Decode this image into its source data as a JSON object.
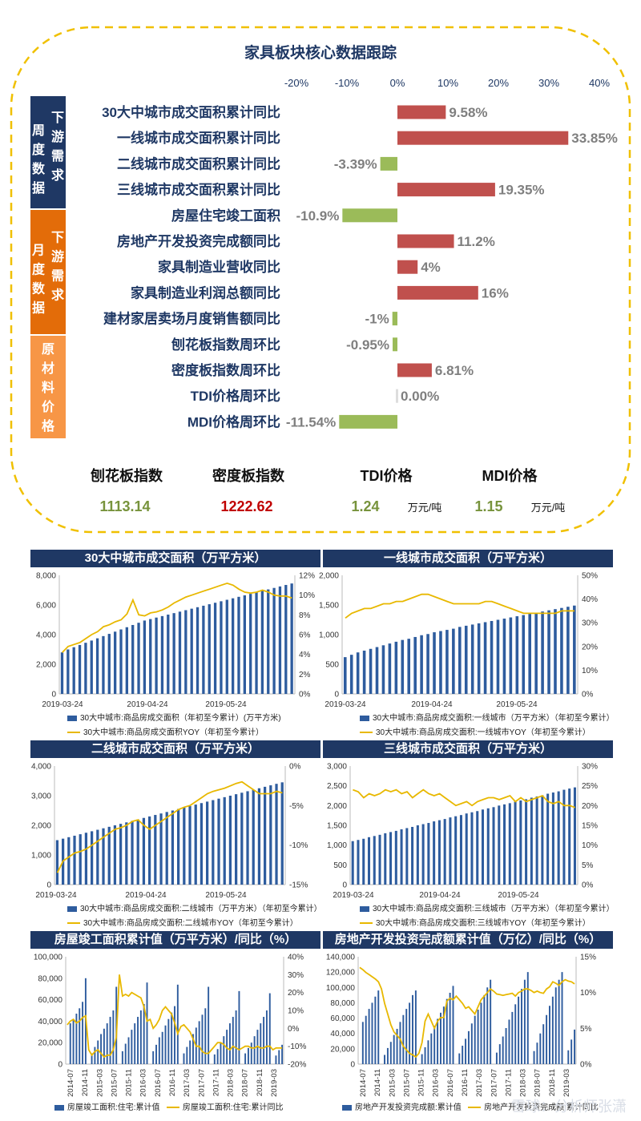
{
  "header": {
    "title": "家具板块核心数据跟踪"
  },
  "sections": [
    {
      "label": "周度数据",
      "sub": "下游需求",
      "color": "#1f3864"
    },
    {
      "label": "月度数据",
      "sub": "下游需求",
      "color": "#e36c09"
    },
    {
      "label": "原材料价格",
      "sub": "",
      "color": "#f79646"
    }
  ],
  "summary": {
    "items": [
      {
        "name": "刨花板指数",
        "value": "1113.14",
        "unit": "",
        "color": "#77933c"
      },
      {
        "name": "密度板指数",
        "value": "1222.62",
        "unit": "",
        "color": "#c00000"
      },
      {
        "name": "TDI价格",
        "value": "1.24",
        "unit": "万元/吨",
        "color": "#77933c"
      },
      {
        "name": "MDI价格",
        "value": "1.15",
        "unit": "万元/吨",
        "color": "#77933c"
      }
    ]
  },
  "chart_data": [
    {
      "type": "bar",
      "title": "家具板块核心数据跟踪",
      "orientation": "horizontal",
      "xlim": [
        -20,
        40
      ],
      "tick_labels": [
        "-20%",
        "-10%",
        "0%",
        "10%",
        "20%",
        "30%",
        "40%"
      ],
      "colors": {
        "positive": "#c0504d",
        "negative": "#9bbb59"
      },
      "categories": [
        "30大中城市成交面积累计同比",
        "一线城市成交面积累计同比",
        "二线城市成交面积累计同比",
        "三线城市成交面积累计同比",
        "房屋住宅竣工面积",
        "房地产开发投资完成额同比",
        "家具制造业营收同比",
        "家具制造业利润总额同比",
        "建材家居卖场月度销售额同比",
        "刨花板指数周环比",
        "密度板指数周环比",
        "TDI价格周环比",
        "MDI价格周环比"
      ],
      "values": [
        9.58,
        33.85,
        -3.39,
        19.35,
        -10.9,
        11.2,
        4,
        16,
        -1,
        -0.95,
        6.81,
        0.0,
        -11.54
      ],
      "labels": [
        "9.58%",
        "33.85%",
        "-3.39%",
        "19.35%",
        "-10.9%",
        "11.2%",
        "4%",
        "16%",
        "-1%",
        "-0.95%",
        "6.81%",
        "0.00%",
        "-11.54%"
      ]
    },
    {
      "type": "bar",
      "title": "30大中城市成交面积（万平方米）",
      "ylim": [
        0,
        8000
      ],
      "y2lim": [
        0,
        12
      ],
      "y_ticks": [
        "0",
        "2,000",
        "4,000",
        "6,000",
        "8,000"
      ],
      "y2_ticks": [
        "0%",
        "2%",
        "4%",
        "6%",
        "8%",
        "10%",
        "12%"
      ],
      "x_ticks": [
        "2019-03-24",
        "2019-04-24",
        "2019-05-24"
      ],
      "series": [
        {
          "name": "30大中城市:商品房成交面积（年初至今累计）(万平方米)",
          "type": "bar",
          "values": [
            2800,
            3000,
            3150,
            3300,
            3450,
            3600,
            3750,
            3900,
            4050,
            4200,
            4350,
            4500,
            4650,
            4800,
            4950,
            5050,
            5150,
            5250,
            5350,
            5450,
            5550,
            5650,
            5750,
            5850,
            5950,
            6050,
            6150,
            6250,
            6350,
            6450,
            6550,
            6650,
            6750,
            6850,
            6950,
            7050,
            7150,
            7250,
            7350,
            7450
          ]
        },
        {
          "name": "30大中城市:商品房成交面积YOY（年初至今累计）",
          "type": "line",
          "axis": "y2",
          "values": [
            4.2,
            4.8,
            5.0,
            5.2,
            5.6,
            6.0,
            6.3,
            6.8,
            7.0,
            7.3,
            7.5,
            8.1,
            9.5,
            8.0,
            7.9,
            8.2,
            8.3,
            8.5,
            8.8,
            9.2,
            9.5,
            9.8,
            10.0,
            10.2,
            10.4,
            10.6,
            10.8,
            11.0,
            11.2,
            11.0,
            10.6,
            10.3,
            10.2,
            10.3,
            10.5,
            10.3,
            10.0,
            9.9,
            9.9,
            9.7
          ]
        }
      ]
    },
    {
      "type": "bar",
      "title": "一线城市成交面积（万平方米）",
      "ylim": [
        0,
        2000
      ],
      "y2lim": [
        0,
        50
      ],
      "y_ticks": [
        "0",
        "500",
        "1,000",
        "1,500",
        "2,000"
      ],
      "y2_ticks": [
        "0%",
        "10%",
        "20%",
        "30%",
        "40%",
        "50%"
      ],
      "x_ticks": [
        "2019-03-24",
        "2019-04-24",
        "2019-05-24"
      ],
      "series": [
        {
          "name": "30大中城市:商品房成交面积:一线城市（万平方米）（年初至今累计）",
          "type": "bar",
          "values": [
            620,
            660,
            700,
            730,
            760,
            790,
            820,
            850,
            880,
            910,
            930,
            960,
            990,
            1010,
            1040,
            1060,
            1080,
            1100,
            1130,
            1150,
            1170,
            1190,
            1210,
            1230,
            1250,
            1270,
            1290,
            1310,
            1330,
            1350,
            1370,
            1390,
            1410,
            1430,
            1450,
            1470,
            1490
          ]
        },
        {
          "name": "30大中城市:商品房成交面积:一线城市YOY（年初至今累计）",
          "type": "line",
          "axis": "y2",
          "values": [
            32,
            34,
            35,
            36,
            36,
            37,
            38,
            38,
            39,
            39,
            40,
            41,
            42,
            42,
            41,
            40,
            39,
            38,
            38,
            38,
            38,
            38,
            39,
            39,
            38,
            37,
            36,
            35,
            34,
            34,
            34,
            34,
            34,
            34,
            35,
            35,
            35
          ]
        }
      ]
    },
    {
      "type": "bar",
      "title": "二线城市成交面积（万平方米）",
      "ylim": [
        0,
        4000
      ],
      "y2lim": [
        -15,
        0
      ],
      "y_ticks": [
        "0",
        "1,000",
        "2,000",
        "3,000",
        "4,000"
      ],
      "y2_ticks": [
        "-15%",
        "-10%",
        "-5%",
        "0%"
      ],
      "x_ticks": [
        "2019-03-24",
        "2019-04-24",
        "2019-05-24"
      ],
      "series": [
        {
          "name": "30大中城市:商品房成交面积:二线城市（万平方米）（年初至今累计）",
          "type": "bar",
          "values": [
            1500,
            1550,
            1600,
            1650,
            1700,
            1750,
            1800,
            1850,
            1900,
            1950,
            2000,
            2050,
            2100,
            2150,
            2200,
            2250,
            2300,
            2350,
            2400,
            2450,
            2500,
            2550,
            2600,
            2650,
            2700,
            2750,
            2800,
            2850,
            2900,
            2950,
            3000,
            3050,
            3100,
            3150,
            3200,
            3250,
            3300,
            3350,
            3400,
            3450
          ]
        },
        {
          "name": "30大中城市:商品房成交面积:二线城市YOY（年初至今累计）",
          "type": "line",
          "axis": "y2",
          "values": [
            -13.5,
            -12.0,
            -11.5,
            -11.0,
            -10.8,
            -10.5,
            -10.0,
            -9.5,
            -9.0,
            -8.5,
            -8.0,
            -7.8,
            -7.5,
            -7.0,
            -6.8,
            -7.5,
            -8.0,
            -7.5,
            -7.0,
            -6.5,
            -6.0,
            -5.5,
            -5.2,
            -5.0,
            -4.5,
            -4.0,
            -3.5,
            -3.2,
            -3.0,
            -2.8,
            -2.5,
            -2.2,
            -2.0,
            -2.5,
            -3.0,
            -3.5,
            -3.5,
            -3.5,
            -3.2,
            -3.4
          ]
        }
      ]
    },
    {
      "type": "bar",
      "title": "三线城市成交面积（万平方米）",
      "ylim": [
        0,
        3000
      ],
      "y2lim": [
        0,
        30
      ],
      "y_ticks": [
        "0",
        "500",
        "1,000",
        "1,500",
        "2,000",
        "2,500",
        "3,000"
      ],
      "y2_ticks": [
        "0%",
        "5%",
        "10%",
        "15%",
        "20%",
        "25%",
        "30%"
      ],
      "x_ticks": [
        "2019-03-24",
        "2019-04-24",
        "2019-05-24"
      ],
      "series": [
        {
          "name": "30大中城市:商品房成交面积:三线城市（万平方米）（年初至今累计）",
          "type": "bar",
          "values": [
            1100,
            1130,
            1160,
            1200,
            1230,
            1260,
            1300,
            1330,
            1360,
            1400,
            1430,
            1460,
            1500,
            1530,
            1560,
            1600,
            1630,
            1660,
            1700,
            1730,
            1760,
            1800,
            1830,
            1860,
            1900,
            1930,
            1960,
            2000,
            2030,
            2060,
            2100,
            2130,
            2160,
            2200,
            2230,
            2260,
            2300,
            2330,
            2360,
            2400,
            2430,
            2460
          ]
        },
        {
          "name": "30大中城市:商品房成交面积:三线城市YOY（年初至今累计）",
          "type": "line",
          "axis": "y2",
          "values": [
            24,
            23.5,
            22,
            23,
            22.5,
            23,
            24,
            23.5,
            24,
            23,
            23.5,
            22,
            23,
            24,
            23,
            22.5,
            23,
            22,
            21,
            20,
            20.5,
            21,
            20,
            21,
            21.5,
            22,
            22,
            21.5,
            22,
            22.5,
            21,
            22,
            21,
            21.5,
            22,
            22.5,
            21,
            20.5,
            21,
            20,
            20,
            19.5
          ]
        }
      ]
    },
    {
      "type": "bar",
      "title": "房屋竣工面积累计值（万平方米）/同比（%）",
      "ylim": [
        0,
        100000
      ],
      "y2lim": [
        -20,
        40
      ],
      "y_ticks": [
        "0",
        "20,000",
        "40,000",
        "60,000",
        "80,000",
        "100,000"
      ],
      "y2_ticks": [
        "-20%",
        "-10%",
        "0%",
        "10%",
        "20%",
        "30%",
        "40%"
      ],
      "x_ticks": [
        "2014-07",
        "2014-11",
        "2015-03",
        "2015-07",
        "2015-11",
        "2016-03",
        "2016-07",
        "2016-11",
        "2017-03",
        "2017-07",
        "2017-11",
        "2018-03",
        "2018-07",
        "2018-11",
        "2019-03"
      ],
      "series": [
        {
          "name": "房屋竣工面积:住宅:累计值",
          "type": "bar",
          "values": [
            null,
            38000,
            42000,
            47000,
            52000,
            58000,
            80000,
            null,
            10000,
            16000,
            22000,
            28000,
            33000,
            38000,
            44000,
            50000,
            72000,
            null,
            12000,
            19000,
            25000,
            32000,
            38000,
            44000,
            50000,
            56000,
            76000,
            null,
            12000,
            18000,
            25000,
            30000,
            36000,
            42000,
            48000,
            54000,
            74000,
            null,
            10000,
            16000,
            22000,
            28000,
            34000,
            40000,
            46000,
            52000,
            72000,
            null,
            9000,
            14000,
            20000,
            26000,
            32000,
            38000,
            44000,
            50000,
            68000,
            null,
            10000,
            15000,
            20000,
            26000,
            32000,
            38000,
            44000,
            50000,
            66000,
            null,
            8000,
            13000,
            18000
          ]
        },
        {
          "name": "房屋竣工面积:住宅:累计同比",
          "type": "line",
          "axis": "y2",
          "values": [
            2,
            4,
            5,
            3,
            4,
            6,
            7,
            -12,
            -15,
            -13,
            -12,
            -14,
            -16,
            -15,
            -15,
            -12,
            -5,
            30,
            18,
            19,
            18,
            20,
            19,
            18,
            17,
            12,
            4,
            5,
            0,
            2,
            5,
            10,
            12,
            10,
            8,
            3,
            -3,
            1,
            2,
            0,
            -2,
            -6,
            -10,
            -10,
            -13,
            -14,
            -14,
            -12,
            -10,
            -8,
            -8,
            -9,
            -11,
            -12,
            -10,
            -11,
            -12,
            -11,
            -10,
            -10,
            -11,
            -11,
            -10,
            -11,
            -11,
            -10,
            -10,
            -12,
            -11,
            -11,
            -11
          ]
        }
      ]
    },
    {
      "type": "bar",
      "title": "房地产开发投资完成额累计值（万亿）/同比（%）",
      "ylim": [
        0,
        140000
      ],
      "y2lim": [
        0,
        15
      ],
      "y_ticks": [
        "0",
        "20,000",
        "40,000",
        "60,000",
        "80,000",
        "100,000",
        "120,000",
        "140,000"
      ],
      "y2_ticks": [
        "0%",
        "5%",
        "10%",
        "15%"
      ],
      "x_ticks": [
        "2014-07",
        "2014-11",
        "2015-03",
        "2015-07",
        "2015-11",
        "2016-03",
        "2016-07",
        "2016-11",
        "2017-03",
        "2017-07",
        "2017-11",
        "2018-03",
        "2018-07",
        "2018-11",
        "2019-03"
      ],
      "series": [
        {
          "name": "房地产开发投资完成额:累计值",
          "type": "bar",
          "values": [
            null,
            55000,
            63000,
            72000,
            80000,
            88000,
            96000,
            null,
            12000,
            21000,
            29000,
            38000,
            46000,
            55000,
            64000,
            72000,
            80000,
            90000,
            96000,
            null,
            13000,
            22000,
            31000,
            40000,
            50000,
            59000,
            67000,
            75000,
            85000,
            93000,
            102000,
            null,
            14000,
            24000,
            33000,
            43000,
            53000,
            63000,
            71000,
            80000,
            90000,
            100000,
            110000,
            null,
            15000,
            26000,
            36000,
            47000,
            58000,
            68000,
            78000,
            88000,
            98000,
            110000,
            120000,
            null,
            17000,
            28000,
            40000,
            52000,
            64000,
            76000,
            88000,
            100000,
            110000,
            120000,
            null,
            18000,
            32000,
            45000
          ]
        },
        {
          "name": "房地产开发投资完成额:累计同比",
          "type": "line",
          "axis": "y2",
          "values": [
            13.5,
            13.2,
            12.8,
            12.5,
            12.2,
            11.9,
            11.5,
            10.5,
            8.5,
            7.0,
            5.5,
            4.5,
            4.0,
            3.5,
            2.5,
            2.0,
            1.5,
            1.3,
            1.0,
            1.5,
            3.0,
            6.0,
            7.0,
            6.0,
            5.0,
            6.0,
            6.5,
            6.5,
            8.8,
            9.2,
            9.0,
            9.5,
            9.0,
            8.5,
            7.8,
            8.0,
            7.5,
            7.0,
            8.0,
            9.0,
            9.5,
            10.0,
            10.5,
            10.2,
            9.8,
            9.7,
            9.6,
            9.7,
            9.8,
            9.9,
            9.5,
            10.0,
            10.2,
            10.5,
            10.5,
            10.3,
            10.0,
            10.2,
            10.0,
            9.9,
            10.5,
            10.8,
            11.5,
            11.3,
            11.0,
            11.5,
            11.8,
            11.6,
            11.5,
            11.2
          ]
        }
      ]
    }
  ],
  "watermark": "雪球：分析师张潇"
}
